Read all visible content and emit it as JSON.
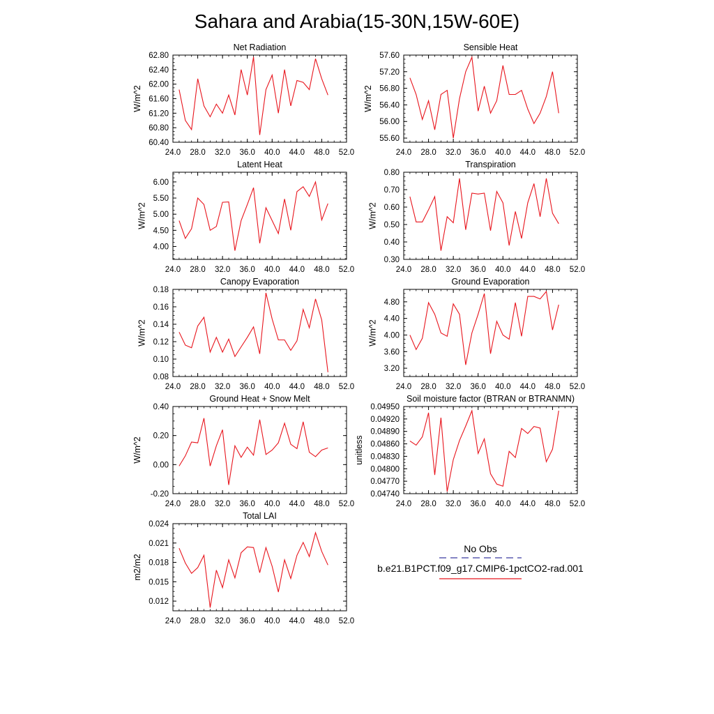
{
  "title": "Sahara and Arabia(15-30N,15W-60E)",
  "colors": {
    "model": "#e8141c",
    "obs": "#3a3aa0",
    "axis": "#000000"
  },
  "legend": {
    "obs_label": "No Obs",
    "model_label": "b.e21.B1PCT.f09_g17.CMIP6-1pctCO2-rad.001"
  },
  "chart_data": [
    {
      "type": "line",
      "title": "Net Radiation",
      "xlabel": "",
      "ylabel": "W/m^2",
      "xlim": [
        24,
        52
      ],
      "xticks": [
        "24.0",
        "28.0",
        "32.0",
        "36.0",
        "40.0",
        "44.0",
        "48.0",
        "52.0"
      ],
      "ylim": [
        60.4,
        62.8
      ],
      "yticks": [
        "60.40",
        "60.80",
        "61.20",
        "61.60",
        "62.00",
        "62.40",
        "62.80"
      ],
      "x": [
        25,
        26,
        27,
        28,
        29,
        30,
        31,
        32,
        33,
        34,
        35,
        36,
        37,
        38,
        39,
        40,
        41,
        42,
        43,
        44,
        45,
        46,
        47,
        48,
        49
      ],
      "y": [
        61.85,
        61.0,
        60.75,
        62.15,
        61.4,
        61.1,
        61.45,
        61.2,
        61.7,
        61.15,
        62.4,
        61.7,
        62.75,
        60.6,
        61.85,
        62.25,
        61.2,
        62.4,
        61.4,
        62.1,
        62.05,
        61.85,
        62.7,
        62.15,
        61.7
      ]
    },
    {
      "type": "line",
      "title": "Sensible Heat",
      "xlabel": "",
      "ylabel": "W/m^2",
      "xlim": [
        24,
        52
      ],
      "xticks": [
        "24.0",
        "28.0",
        "32.0",
        "36.0",
        "40.0",
        "44.0",
        "48.0",
        "52.0"
      ],
      "ylim": [
        55.5,
        57.6
      ],
      "yticks": [
        "55.60",
        "56.00",
        "56.40",
        "56.80",
        "57.20",
        "57.60"
      ],
      "x": [
        25,
        26,
        27,
        28,
        29,
        30,
        31,
        32,
        33,
        34,
        35,
        36,
        37,
        38,
        39,
        40,
        41,
        42,
        43,
        44,
        45,
        46,
        47,
        48,
        49
      ],
      "y": [
        57.05,
        56.65,
        56.05,
        56.5,
        55.8,
        56.65,
        56.75,
        55.6,
        56.55,
        57.2,
        57.55,
        56.25,
        56.85,
        56.2,
        56.5,
        57.35,
        56.65,
        56.65,
        56.75,
        56.3,
        55.95,
        56.2,
        56.6,
        57.2,
        56.2
      ]
    },
    {
      "type": "line",
      "title": "Latent Heat",
      "xlabel": "",
      "ylabel": "W/m^2",
      "xlim": [
        24,
        52
      ],
      "xticks": [
        "24.0",
        "28.0",
        "32.0",
        "36.0",
        "40.0",
        "44.0",
        "48.0",
        "52.0"
      ],
      "ylim": [
        3.6,
        6.3
      ],
      "yticks": [
        "4.00",
        "4.50",
        "5.00",
        "5.50",
        "6.00"
      ],
      "x": [
        25,
        26,
        27,
        28,
        29,
        30,
        31,
        32,
        33,
        34,
        35,
        36,
        37,
        38,
        39,
        40,
        41,
        42,
        43,
        44,
        45,
        46,
        47,
        48,
        49
      ],
      "y": [
        4.8,
        4.25,
        4.55,
        5.5,
        5.3,
        4.5,
        4.62,
        5.37,
        5.38,
        3.87,
        4.8,
        5.3,
        5.82,
        4.1,
        5.2,
        4.8,
        4.4,
        5.47,
        4.5,
        5.7,
        5.85,
        5.55,
        6.0,
        4.82,
        5.33
      ]
    },
    {
      "type": "line",
      "title": "Transpiration",
      "xlabel": "",
      "ylabel": "W/m^2",
      "xlim": [
        24,
        52
      ],
      "xticks": [
        "24.0",
        "28.0",
        "32.0",
        "36.0",
        "40.0",
        "44.0",
        "48.0",
        "52.0"
      ],
      "ylim": [
        0.3,
        0.8
      ],
      "yticks": [
        "0.30",
        "0.40",
        "0.50",
        "0.60",
        "0.70",
        "0.80"
      ],
      "x": [
        25,
        26,
        27,
        28,
        29,
        30,
        31,
        32,
        33,
        34,
        35,
        36,
        37,
        38,
        39,
        40,
        41,
        42,
        43,
        44,
        45,
        46,
        47,
        48,
        49
      ],
      "y": [
        0.66,
        0.515,
        0.515,
        0.585,
        0.66,
        0.35,
        0.545,
        0.51,
        0.765,
        0.47,
        0.68,
        0.675,
        0.68,
        0.465,
        0.69,
        0.625,
        0.38,
        0.575,
        0.42,
        0.625,
        0.735,
        0.545,
        0.765,
        0.565,
        0.505
      ]
    },
    {
      "type": "line",
      "title": "Canopy Evaporation",
      "xlabel": "",
      "ylabel": "W/m^2",
      "xlim": [
        24,
        52
      ],
      "xticks": [
        "24.0",
        "28.0",
        "32.0",
        "36.0",
        "40.0",
        "44.0",
        "48.0",
        "52.0"
      ],
      "ylim": [
        0.08,
        0.18
      ],
      "yticks": [
        "0.08",
        "0.10",
        "0.12",
        "0.14",
        "0.16",
        "0.18"
      ],
      "x": [
        25,
        26,
        27,
        28,
        29,
        30,
        31,
        32,
        33,
        34,
        35,
        36,
        37,
        38,
        39,
        40,
        41,
        42,
        43,
        44,
        45,
        46,
        47,
        48,
        49
      ],
      "y": [
        0.131,
        0.116,
        0.113,
        0.138,
        0.148,
        0.108,
        0.125,
        0.108,
        0.123,
        0.103,
        0.114,
        0.125,
        0.137,
        0.106,
        0.176,
        0.146,
        0.122,
        0.122,
        0.11,
        0.121,
        0.157,
        0.136,
        0.169,
        0.145,
        0.085
      ]
    },
    {
      "type": "line",
      "title": "Ground Evaporation",
      "xlabel": "",
      "ylabel": "W/m^2",
      "xlim": [
        24,
        52
      ],
      "xticks": [
        "24.0",
        "28.0",
        "32.0",
        "36.0",
        "40.0",
        "44.0",
        "48.0",
        "52.0"
      ],
      "ylim": [
        3.0,
        5.1
      ],
      "yticks": [
        "3.20",
        "3.60",
        "4.00",
        "4.40",
        "4.80"
      ],
      "x": [
        25,
        26,
        27,
        28,
        29,
        30,
        31,
        32,
        33,
        34,
        35,
        36,
        37,
        38,
        39,
        40,
        41,
        42,
        43,
        44,
        45,
        46,
        47,
        48,
        49
      ],
      "y": [
        4.0,
        3.65,
        3.92,
        4.78,
        4.5,
        4.05,
        3.97,
        4.75,
        4.5,
        3.28,
        4.05,
        4.5,
        5.0,
        3.55,
        4.33,
        4.0,
        3.9,
        4.78,
        3.97,
        4.93,
        4.93,
        4.87,
        5.05,
        4.12,
        4.73
      ]
    },
    {
      "type": "line",
      "title": "Ground Heat + Snow Melt",
      "xlabel": "",
      "ylabel": "W/m^2",
      "xlim": [
        24,
        52
      ],
      "xticks": [
        "24.0",
        "28.0",
        "32.0",
        "36.0",
        "40.0",
        "44.0",
        "48.0",
        "52.0"
      ],
      "ylim": [
        -0.2,
        0.4
      ],
      "yticks": [
        "-0.20",
        "0.00",
        "0.20",
        "0.40"
      ],
      "x": [
        25,
        26,
        27,
        28,
        29,
        30,
        31,
        32,
        33,
        34,
        35,
        36,
        37,
        38,
        39,
        40,
        41,
        42,
        43,
        44,
        45,
        46,
        47,
        48,
        49
      ],
      "y": [
        -0.01,
        0.06,
        0.155,
        0.15,
        0.32,
        -0.01,
        0.13,
        0.24,
        -0.14,
        0.13,
        0.05,
        0.12,
        0.065,
        0.31,
        0.07,
        0.1,
        0.15,
        0.285,
        0.14,
        0.11,
        0.295,
        0.085,
        0.055,
        0.1,
        0.115
      ]
    },
    {
      "type": "line",
      "title": "Soil moisture factor (BTRAN or BTRANMN)",
      "xlabel": "",
      "ylabel": "unitless",
      "xlim": [
        24,
        52
      ],
      "xticks": [
        "24.0",
        "28.0",
        "32.0",
        "36.0",
        "40.0",
        "44.0",
        "48.0",
        "52.0"
      ],
      "ylim": [
        0.0474,
        0.0495
      ],
      "yticks": [
        "0.04740",
        "0.04770",
        "0.04800",
        "0.04830",
        "0.04860",
        "0.04890",
        "0.04920",
        "0.04950"
      ],
      "x": [
        25,
        26,
        27,
        28,
        29,
        30,
        31,
        32,
        33,
        34,
        35,
        36,
        37,
        38,
        39,
        40,
        41,
        42,
        43,
        44,
        45,
        46,
        47,
        48,
        49
      ],
      "y": [
        0.04867,
        0.04857,
        0.04877,
        0.04935,
        0.04785,
        0.04923,
        0.04745,
        0.04822,
        0.04868,
        0.04903,
        0.0494,
        0.04837,
        0.04872,
        0.04788,
        0.04763,
        0.04758,
        0.04842,
        0.04827,
        0.04897,
        0.04885,
        0.04902,
        0.04898,
        0.04817,
        0.04847,
        0.0494
      ]
    },
    {
      "type": "line",
      "title": "Total LAI",
      "xlabel": "",
      "ylabel": "m2/m2",
      "xlim": [
        24,
        52
      ],
      "xticks": [
        "24.0",
        "28.0",
        "32.0",
        "36.0",
        "40.0",
        "44.0",
        "48.0",
        "52.0"
      ],
      "ylim": [
        0.0105,
        0.024
      ],
      "yticks": [
        "0.012",
        "0.015",
        "0.018",
        "0.021",
        "0.024"
      ],
      "x": [
        25,
        26,
        27,
        28,
        29,
        30,
        31,
        32,
        33,
        34,
        35,
        36,
        37,
        38,
        39,
        40,
        41,
        42,
        43,
        44,
        45,
        46,
        47,
        48,
        49
      ],
      "y": [
        0.0202,
        0.0179,
        0.0163,
        0.0172,
        0.0191,
        0.011,
        0.0168,
        0.0141,
        0.0184,
        0.0156,
        0.0195,
        0.0204,
        0.0203,
        0.0164,
        0.0203,
        0.0174,
        0.0134,
        0.0184,
        0.0155,
        0.0191,
        0.0211,
        0.0189,
        0.0226,
        0.0197,
        0.0176
      ]
    }
  ]
}
